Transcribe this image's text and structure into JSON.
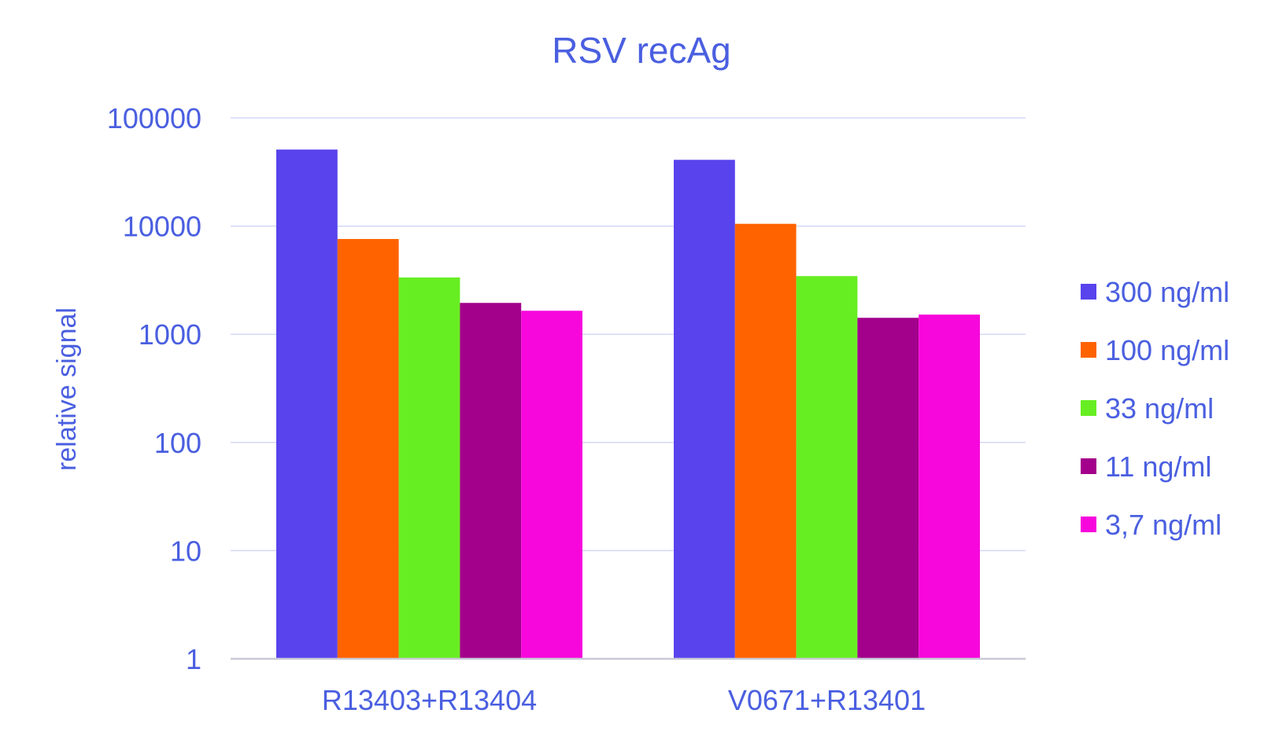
{
  "chart_data": {
    "type": "bar",
    "title": "RSV recAg",
    "xlabel": "",
    "ylabel": "relative signal",
    "yscale": "log",
    "ylim": [
      1,
      100000
    ],
    "yticks": [
      1,
      10,
      100,
      1000,
      10000,
      100000
    ],
    "ytick_labels": [
      "1",
      "10",
      "100",
      "1000",
      "10000",
      "100000"
    ],
    "grid": true,
    "legend_position": "right",
    "categories": [
      "R13403+R13404",
      "V0671+R13401"
    ],
    "series": [
      {
        "name": "300 ng/ml",
        "color": "#5843EC",
        "values": [
          51000,
          41000
        ]
      },
      {
        "name": "100 ng/ml",
        "color": "#FF6300",
        "values": [
          7600,
          10500
        ]
      },
      {
        "name": "33 ng/ml",
        "color": "#67EE22",
        "values": [
          3350,
          3450
        ]
      },
      {
        "name": "11 ng/ml",
        "color": "#A3008B",
        "values": [
          1950,
          1420
        ]
      },
      {
        "name": "3,7 ng/ml",
        "color": "#F707DC",
        "values": [
          1650,
          1520
        ]
      }
    ],
    "colors": {
      "text": "#4A5FE0",
      "gridline": "#D3D8F5",
      "axis_line": "#C9C9D6"
    }
  }
}
